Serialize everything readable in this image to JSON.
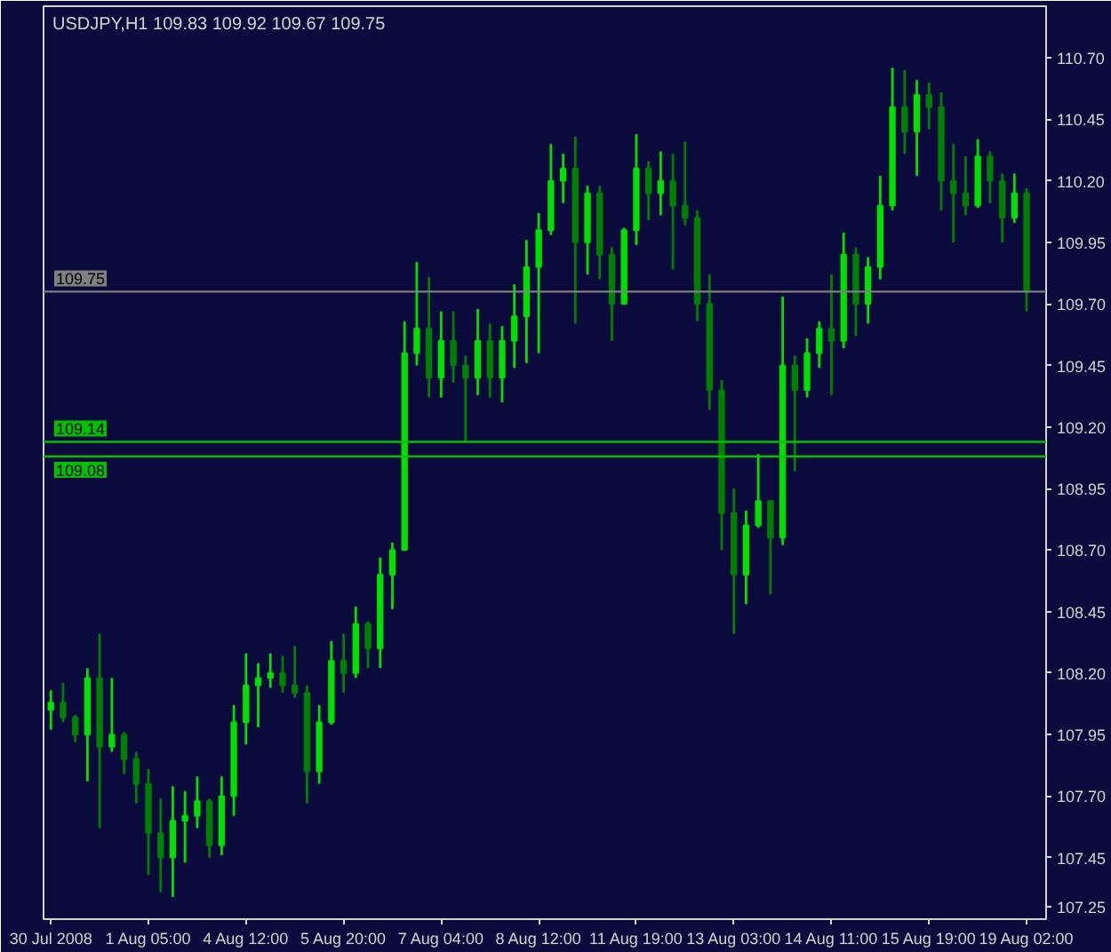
{
  "chart_data": {
    "type": "candlestick",
    "title": "USDJPY,H1 109.83 109.92 109.67 109.75",
    "categories": [
      "30 Jul 2008",
      null,
      null,
      null,
      null,
      null,
      null,
      null,
      "1 Aug 05:00",
      null,
      null,
      null,
      null,
      null,
      null,
      null,
      "4 Aug 12:00",
      null,
      null,
      null,
      null,
      null,
      null,
      null,
      "5 Aug 20:00",
      null,
      null,
      null,
      null,
      null,
      null,
      null,
      "7 Aug 04:00",
      null,
      null,
      null,
      null,
      null,
      null,
      null,
      "8 Aug 12:00",
      null,
      null,
      null,
      null,
      null,
      null,
      null,
      "11 Aug 19:00",
      null,
      null,
      null,
      null,
      null,
      null,
      null,
      "13 Aug 03:00",
      null,
      null,
      null,
      null,
      null,
      null,
      null,
      "14 Aug 11:00",
      null,
      null,
      null,
      null,
      null,
      null,
      null,
      "15 Aug 19:00",
      null,
      null,
      null,
      null,
      null,
      null,
      null,
      "19 Aug 02:00"
    ],
    "ohlc": [
      [
        108.05,
        108.13,
        107.97,
        108.08
      ],
      [
        108.08,
        108.16,
        108.0,
        108.02
      ],
      [
        108.02,
        108.03,
        107.92,
        107.95
      ],
      [
        107.95,
        108.22,
        107.76,
        108.18
      ],
      [
        108.18,
        108.36,
        107.57,
        107.9
      ],
      [
        107.9,
        108.18,
        107.88,
        107.95
      ],
      [
        107.95,
        107.96,
        107.79,
        107.85
      ],
      [
        107.85,
        107.88,
        107.67,
        107.75
      ],
      [
        107.75,
        107.81,
        107.38,
        107.55
      ],
      [
        107.55,
        107.69,
        107.31,
        107.45
      ],
      [
        107.45,
        107.74,
        107.29,
        107.6
      ],
      [
        107.6,
        107.72,
        107.43,
        107.62
      ],
      [
        107.62,
        107.78,
        107.57,
        107.68
      ],
      [
        107.68,
        107.69,
        107.45,
        107.5
      ],
      [
        107.5,
        107.78,
        107.46,
        107.7
      ],
      [
        107.7,
        108.07,
        107.62,
        108.0
      ],
      [
        108.0,
        108.28,
        107.91,
        108.15
      ],
      [
        108.15,
        108.24,
        107.98,
        108.18
      ],
      [
        108.18,
        108.28,
        108.14,
        108.2
      ],
      [
        108.2,
        108.27,
        108.12,
        108.15
      ],
      [
        108.15,
        108.31,
        108.1,
        108.12
      ],
      [
        108.12,
        108.15,
        107.67,
        107.8
      ],
      [
        107.8,
        108.07,
        107.75,
        108.0
      ],
      [
        108.0,
        108.33,
        107.99,
        108.25
      ],
      [
        108.25,
        108.36,
        108.12,
        108.2
      ],
      [
        108.2,
        108.47,
        108.18,
        108.4
      ],
      [
        108.4,
        108.41,
        108.22,
        108.3
      ],
      [
        108.3,
        108.67,
        108.22,
        108.6
      ],
      [
        108.6,
        108.73,
        108.46,
        108.7
      ],
      [
        108.7,
        109.63,
        108.7,
        109.5
      ],
      [
        109.5,
        109.87,
        109.45,
        109.6
      ],
      [
        109.6,
        109.81,
        109.32,
        109.4
      ],
      [
        109.4,
        109.67,
        109.32,
        109.55
      ],
      [
        109.55,
        109.67,
        109.38,
        109.45
      ],
      [
        109.45,
        109.49,
        109.14,
        109.4
      ],
      [
        109.4,
        109.68,
        109.33,
        109.55
      ],
      [
        109.55,
        109.62,
        109.32,
        109.4
      ],
      [
        109.4,
        109.61,
        109.3,
        109.55
      ],
      [
        109.55,
        109.78,
        109.44,
        109.65
      ],
      [
        109.65,
        109.96,
        109.46,
        109.85
      ],
      [
        109.85,
        110.07,
        109.5,
        110.0
      ],
      [
        110.0,
        110.35,
        109.98,
        110.2
      ],
      [
        110.2,
        110.31,
        110.11,
        110.25
      ],
      [
        110.25,
        110.38,
        109.62,
        109.95
      ],
      [
        109.95,
        110.18,
        109.82,
        110.15
      ],
      [
        110.15,
        110.18,
        109.8,
        109.9
      ],
      [
        109.9,
        109.93,
        109.55,
        109.7
      ],
      [
        109.7,
        110.01,
        109.7,
        110.0
      ],
      [
        110.0,
        110.39,
        109.94,
        110.25
      ],
      [
        110.25,
        110.28,
        110.04,
        110.15
      ],
      [
        110.15,
        110.32,
        110.06,
        110.2
      ],
      [
        110.2,
        110.31,
        109.84,
        110.1
      ],
      [
        110.1,
        110.36,
        110.02,
        110.05
      ],
      [
        110.05,
        110.08,
        109.63,
        109.7
      ],
      [
        109.7,
        109.82,
        109.27,
        109.35
      ],
      [
        109.35,
        109.39,
        108.7,
        108.85
      ],
      [
        108.85,
        108.95,
        108.36,
        108.6
      ],
      [
        108.6,
        108.86,
        108.48,
        108.8
      ],
      [
        108.8,
        109.09,
        108.79,
        108.9
      ],
      [
        108.9,
        108.9,
        108.52,
        108.75
      ],
      [
        108.75,
        109.73,
        108.72,
        109.45
      ],
      [
        109.45,
        109.49,
        109.02,
        109.35
      ],
      [
        109.35,
        109.56,
        109.32,
        109.5
      ],
      [
        109.5,
        109.63,
        109.44,
        109.6
      ],
      [
        109.6,
        109.82,
        109.33,
        109.55
      ],
      [
        109.55,
        109.99,
        109.52,
        109.9
      ],
      [
        109.9,
        109.93,
        109.57,
        109.7
      ],
      [
        109.7,
        109.89,
        109.62,
        109.85
      ],
      [
        109.85,
        110.22,
        109.8,
        110.1
      ],
      [
        110.1,
        110.66,
        110.08,
        110.5
      ],
      [
        110.5,
        110.65,
        110.31,
        110.4
      ],
      [
        110.4,
        110.61,
        110.22,
        110.55
      ],
      [
        110.55,
        110.6,
        110.41,
        110.5
      ],
      [
        110.5,
        110.56,
        110.08,
        110.2
      ],
      [
        110.2,
        110.35,
        109.95,
        110.15
      ],
      [
        110.15,
        110.3,
        110.06,
        110.1
      ],
      [
        110.1,
        110.37,
        110.09,
        110.3
      ],
      [
        110.3,
        110.32,
        110.11,
        110.2
      ],
      [
        110.2,
        110.23,
        109.95,
        110.05
      ],
      [
        110.05,
        110.23,
        110.03,
        110.15
      ],
      [
        110.15,
        110.17,
        109.67,
        109.75
      ]
    ],
    "colors": [
      "#00e000",
      "#008000",
      "#008000",
      "#00e000",
      "#008000",
      "#00e000",
      "#008000",
      "#008000",
      "#008000",
      "#008000",
      "#00e000",
      "#00e000",
      "#00e000",
      "#008000",
      "#00e000",
      "#00e000",
      "#00e000",
      "#00e000",
      "#00e000",
      "#008000",
      "#008000",
      "#008000",
      "#00e000",
      "#00e000",
      "#008000",
      "#00e000",
      "#008000",
      "#00e000",
      "#00e000",
      "#00e000",
      "#00e000",
      "#008000",
      "#00e000",
      "#008000",
      "#008000",
      "#00e000",
      "#008000",
      "#00e000",
      "#00e000",
      "#00e000",
      "#00e000",
      "#00e000",
      "#00e000",
      "#008000",
      "#00e000",
      "#008000",
      "#008000",
      "#00e000",
      "#00e000",
      "#008000",
      "#00e000",
      "#008000",
      "#008000",
      "#008000",
      "#008000",
      "#008000",
      "#008000",
      "#00e000",
      "#00e000",
      "#008000",
      "#00e000",
      "#008000",
      "#00e000",
      "#00e000",
      "#008000",
      "#00e000",
      "#008000",
      "#00e000",
      "#00e000",
      "#00e000",
      "#008000",
      "#00e000",
      "#008000",
      "#008000",
      "#008000",
      "#008000",
      "#00e000",
      "#008000",
      "#008000",
      "#00e000",
      "#008000"
    ],
    "ylim": [
      107.2,
      110.91
    ],
    "yticks": [
      {
        "value": 110.7,
        "label": "110.70"
      },
      110.45,
      {
        "value": 110.2,
        "label": "110.20"
      },
      109.95,
      {
        "value": 109.7,
        "label": "109.70"
      },
      109.45,
      {
        "value": 109.2,
        "label": "109.20"
      },
      108.95,
      {
        "value": 108.7,
        "label": "108.70"
      },
      108.45,
      {
        "value": 108.2,
        "label": "108.20"
      },
      107.95,
      {
        "value": 107.7,
        "label": "107.70"
      },
      107.45,
      107.25
    ],
    "ref_lines": [
      {
        "axis": "y",
        "value": 109.75,
        "label": "109.75",
        "color": "#808080"
      },
      {
        "axis": "y",
        "value": 109.14,
        "label": "109.14",
        "color": "#00c000"
      },
      {
        "axis": "y",
        "value": 109.08,
        "label": "109.08",
        "color": "#00c000"
      }
    ]
  }
}
